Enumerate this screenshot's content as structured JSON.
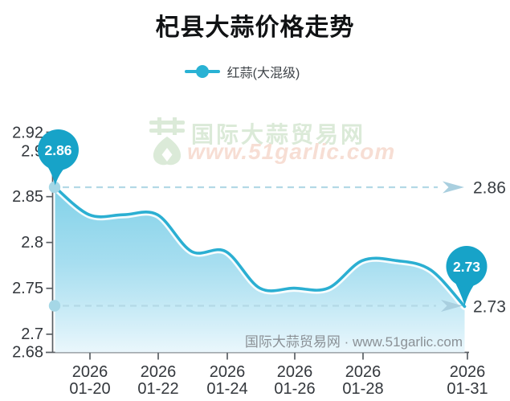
{
  "title": "杞县大蒜价格走势",
  "legend": {
    "label": "红蒜(大混级)",
    "color": "#29b2d4"
  },
  "colors": {
    "line": "#2bafd2",
    "pin": "#17a3c8",
    "area_top": "#7bcfe7",
    "area_mid": "#9cdaee",
    "area_bottom": "#eaf7fc",
    "dash_line": "#b3d9e6",
    "arrow": "#a9cfdf",
    "axis": "#5a5f64",
    "axis_label": "#33373c",
    "marker_dot": "#a5d7e6",
    "watermark_green": "#dbead8",
    "watermark_pink": "#f7ded4",
    "watermark_gray": "#8b9196"
  },
  "chart_data": {
    "type": "area",
    "title": "杞县大蒜价格走势",
    "smooth": true,
    "grid": false,
    "legend_position": "top",
    "xlabel": "",
    "ylabel": "",
    "ylim": [
      2.68,
      2.92
    ],
    "x": [
      "2026-01-19",
      "2026-01-20",
      "2026-01-21",
      "2026-01-22",
      "2026-01-23",
      "2026-01-24",
      "2026-01-25",
      "2026-01-26",
      "2026-01-27",
      "2026-01-28",
      "2026-01-29",
      "2026-01-30",
      "2026-01-31"
    ],
    "series": [
      {
        "name": "红蒜(大混级)",
        "values": [
          2.86,
          2.83,
          2.83,
          2.83,
          2.79,
          2.79,
          2.75,
          2.75,
          2.75,
          2.78,
          2.78,
          2.77,
          2.73
        ]
      }
    ],
    "y_tick_labels": [
      "2.92",
      "2.9",
      "2.85",
      "2.8",
      "2.75",
      "2.7",
      "2.68"
    ],
    "x_ticks": [
      {
        "year": "2026",
        "date": "01-20"
      },
      {
        "year": "2026",
        "date": "01-22"
      },
      {
        "year": "2026",
        "date": "01-24"
      },
      {
        "year": "2026",
        "date": "01-26"
      },
      {
        "year": "2026",
        "date": "01-28"
      },
      {
        "year": "2026",
        "date": "01-31"
      }
    ],
    "start_marker": {
      "date": "2026-01-19",
      "value": 2.86,
      "label": "2.86"
    },
    "end_marker": {
      "date": "2026-01-31",
      "value": 2.73,
      "label": "2.73"
    },
    "reference_lines": [
      {
        "value": 2.86,
        "label": "2.86"
      },
      {
        "value": 2.73,
        "label": "2.73"
      }
    ]
  },
  "watermark_top": {
    "logo": "garlic-logo",
    "brand": "国际大蒜贸易网",
    "url": "www.51garlic.com"
  },
  "watermark_bottom": {
    "text": "国际大蒜贸易网 · www.51garlic.com"
  }
}
